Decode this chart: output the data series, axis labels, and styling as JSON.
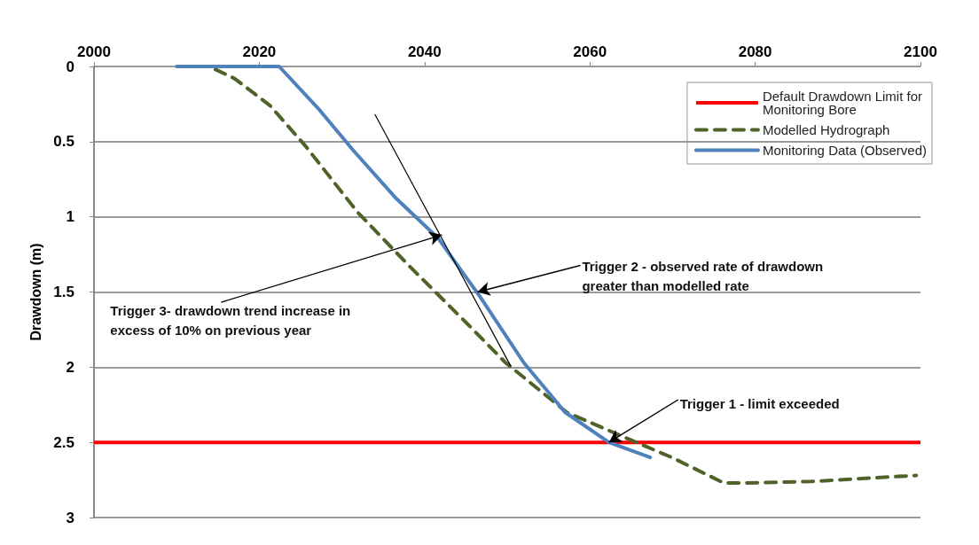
{
  "chart_data": {
    "type": "line",
    "ylabel": "Drawdown (m)",
    "xlim": [
      2000,
      2100
    ],
    "xticks": [
      2000,
      2020,
      2040,
      2060,
      2080,
      2100
    ],
    "ylim": [
      3,
      0
    ],
    "yticks": [
      0,
      0.5,
      1,
      1.5,
      2,
      2.5,
      3
    ],
    "grid": "y",
    "legend": "top right",
    "marker": "none",
    "series": [
      {
        "name": "Modelled Hydrograph",
        "color": "#4f6228",
        "line_style": "dashed",
        "x": [
          2014.7,
          2017,
          2021.3,
          2025.6,
          2031.9,
          2038.2,
          2044.6,
          2049.8,
          2057.2,
          2063.5,
          2069.9,
          2076.2,
          2078.9,
          2086.8,
          2099.5
        ],
        "values": [
          0.02,
          0.08,
          0.26,
          0.53,
          0.97,
          1.33,
          1.68,
          1.97,
          2.3,
          2.45,
          2.6,
          2.77,
          2.77,
          2.76,
          2.72
        ]
      },
      {
        "name": "Monitoring Data (Observed)",
        "color": "#4f81bd",
        "line_style": "solid",
        "x": [
          2010,
          2022.4,
          2027.3,
          2031.4,
          2036.6,
          2041.6,
          2046.7,
          2052,
          2057,
          2062.3,
          2067.3
        ],
        "values": [
          0,
          0,
          0.29,
          0.56,
          0.88,
          1.14,
          1.53,
          1.97,
          2.3,
          2.5,
          2.6
        ]
      },
      {
        "color": "#000000",
        "line_style": "solid",
        "x": [
          2034,
          2050.4
        ],
        "values": [
          0.32,
          1.99
        ]
      }
    ],
    "ref_lines": [
      {
        "axis": "y",
        "value": 2.5,
        "label": "Default Drawdown Limit for Monitoring Bore",
        "color": "#ff0000"
      }
    ],
    "annotations": [
      {
        "text": "Trigger 1 - limit exceeded",
        "x": 2062.3,
        "y": 2.5
      },
      {
        "text": "Trigger 2 - observed rate of drawdown greater than modelled rate",
        "x": 2046.4,
        "y": 1.5
      },
      {
        "text": "Trigger 3- drawdown trend increase in excess of 10% on previous year",
        "x": 2042.1,
        "y": 1.12
      }
    ]
  }
}
